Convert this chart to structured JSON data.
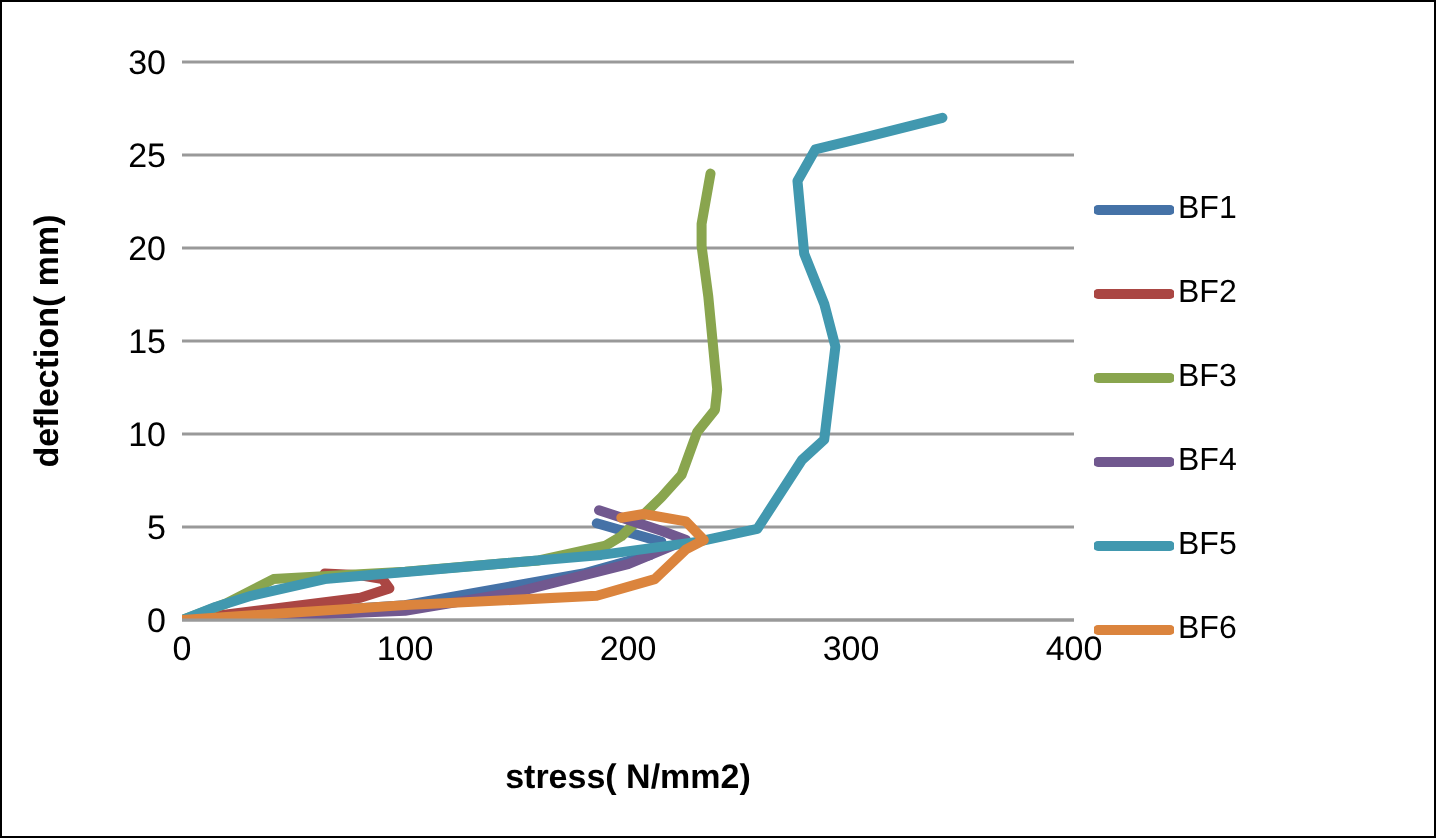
{
  "chart_data": {
    "type": "line",
    "xlabel": "stress( N/mm2)",
    "ylabel": "deflection( mm)",
    "xlim": [
      0,
      400
    ],
    "xticks": [
      0,
      100,
      200,
      300,
      400
    ],
    "ylim": [
      0,
      30
    ],
    "yticks": [
      0,
      5,
      10,
      15,
      20,
      25,
      30
    ],
    "grid": "y",
    "legend": "right",
    "marker": "none",
    "line_style": "solid",
    "series": [
      {
        "name": "BF1",
        "color": "#4572a7",
        "x": [
          0,
          100,
          180,
          210,
          215,
          186
        ],
        "values": [
          0,
          0.8,
          2.5,
          3.5,
          4.2,
          5.2
        ]
      },
      {
        "name": "BF2",
        "color": "#aa4643",
        "x": [
          0,
          40,
          80,
          93,
          90,
          80,
          64
        ],
        "values": [
          0,
          0.6,
          1.2,
          1.7,
          2.2,
          2.4,
          2.5
        ]
      },
      {
        "name": "BF3",
        "color": "#89a54e",
        "x": [
          0,
          20,
          41,
          100,
          160,
          190,
          197,
          215,
          224,
          231,
          239,
          240,
          236,
          233,
          233,
          237
        ],
        "values": [
          0,
          0.9,
          2.2,
          2.6,
          3.2,
          4,
          4.5,
          6.6,
          7.8,
          10.1,
          11.3,
          12.4,
          17.4,
          20.1,
          21.3,
          24
        ]
      },
      {
        "name": "BF4",
        "color": "#71588f",
        "x": [
          0,
          100,
          150,
          200,
          226,
          215,
          187
        ],
        "values": [
          0,
          0.5,
          1.5,
          3,
          4.3,
          4.8,
          5.9
        ]
      },
      {
        "name": "BF5",
        "color": "#4198af",
        "x": [
          0,
          15,
          31,
          64,
          188,
          231,
          258,
          278,
          288,
          293,
          288,
          279,
          276,
          284,
          308,
          341
        ],
        "values": [
          0,
          0.7,
          1.3,
          2.2,
          3.5,
          4.2,
          4.9,
          8.6,
          9.7,
          14.7,
          17,
          19.7,
          23.6,
          25.3,
          26,
          27
        ]
      },
      {
        "name": "BF6",
        "color": "#db843d",
        "x": [
          0,
          100,
          186,
          212,
          226,
          234,
          226,
          207,
          197
        ],
        "values": [
          0,
          0.8,
          1.3,
          2.2,
          3.8,
          4.3,
          5.3,
          5.7,
          5.5
        ]
      }
    ]
  }
}
